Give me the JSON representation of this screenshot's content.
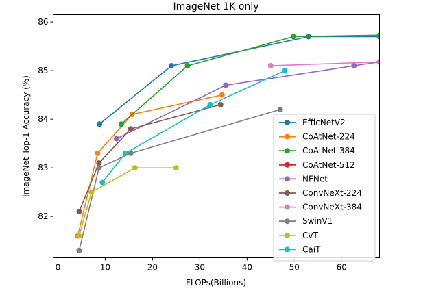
{
  "chart_data": {
    "type": "line",
    "title": "ImageNet 1K only",
    "xlabel": "FLOPs(Billions)",
    "ylabel": "ImageNet Top-1 Accuracy (%)",
    "xlim": [
      -1,
      68
    ],
    "ylim": [
      81.15,
      86.15
    ],
    "xticks": [
      0,
      10,
      20,
      30,
      40,
      50,
      60
    ],
    "yticks": [
      82,
      83,
      84,
      85,
      86
    ],
    "legend_position": "lower-right",
    "series": [
      {
        "name": "EfficNetV2",
        "color": "#1f77b4",
        "x": [
          8.8,
          24,
          53,
          68
        ],
        "y": [
          83.9,
          85.1,
          85.7,
          85.7
        ]
      },
      {
        "name": "CoAtNet-224",
        "color": "#ff7f0e",
        "x": [
          4.2,
          8.4,
          15.7,
          34.7
        ],
        "y": [
          81.6,
          83.3,
          84.1,
          84.5
        ]
      },
      {
        "name": "CoAtNet-384",
        "color": "#2ca02c",
        "x": [
          13.4,
          27.4,
          49.8,
          68
        ],
        "y": [
          83.9,
          85.1,
          85.7,
          85.73
        ]
      },
      {
        "name": "CoAtNet-512",
        "color": "#d62728",
        "x": [],
        "y": []
      },
      {
        "name": "NFNet",
        "color": "#9467bd",
        "x": [
          12.4,
          35.5,
          62.6,
          68
        ],
        "y": [
          83.6,
          84.7,
          85.1,
          85.18
        ]
      },
      {
        "name": "ConvNeXt-224",
        "color": "#8c564b",
        "x": [
          4.5,
          8.7,
          15.4,
          34.4
        ],
        "y": [
          82.1,
          83.1,
          83.8,
          84.3
        ]
      },
      {
        "name": "ConvNeXt-384",
        "color": "#e377c2",
        "x": [
          45.0,
          68
        ],
        "y": [
          85.1,
          85.18
        ]
      },
      {
        "name": "SwinV1",
        "color": "#7f7f7f",
        "x": [
          4.5,
          8.7,
          15.4,
          47.0
        ],
        "y": [
          81.3,
          83.0,
          83.3,
          84.2
        ]
      },
      {
        "name": "CvT",
        "color": "#bcbd22",
        "x": [
          4.5,
          7.1,
          16.3,
          25.0
        ],
        "y": [
          81.6,
          82.5,
          83.0,
          83.0
        ]
      },
      {
        "name": "CaiT",
        "color": "#17becf",
        "x": [
          9.4,
          14.3,
          32.2,
          48.0
        ],
        "y": [
          82.7,
          83.3,
          84.3,
          85.0
        ]
      }
    ]
  }
}
